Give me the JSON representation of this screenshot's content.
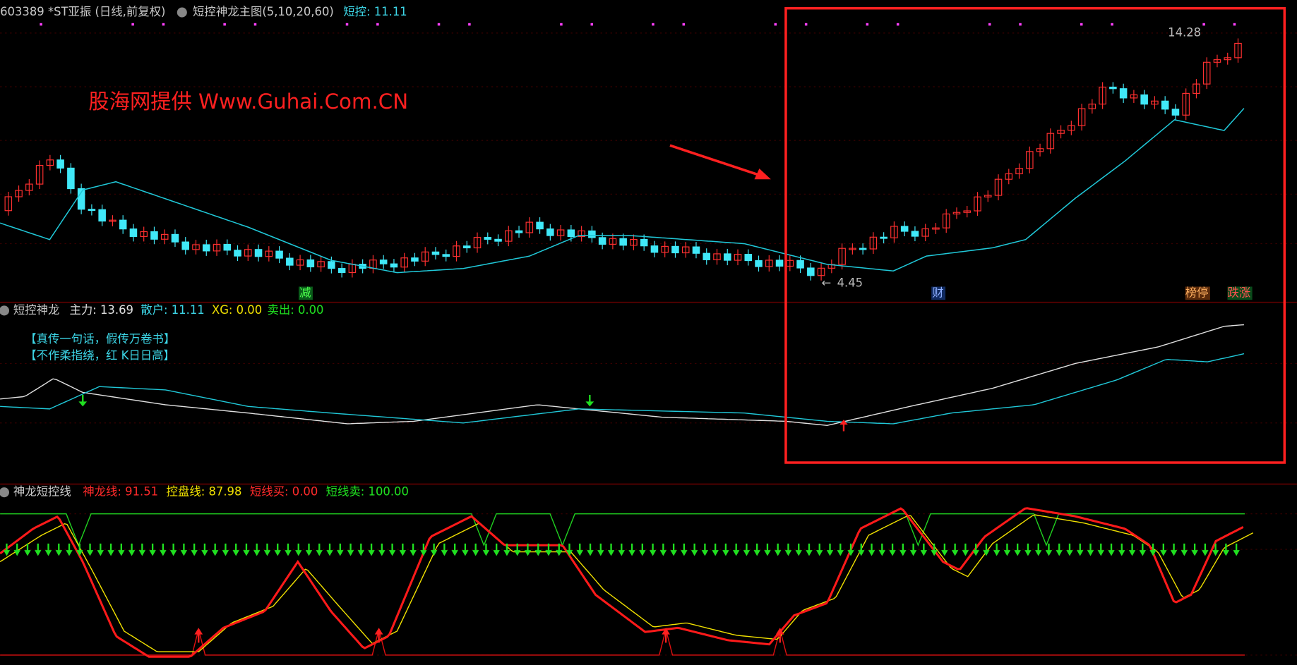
{
  "header": {
    "symbol": "603389 *ST亚振 (日线,前复权)",
    "indicator": "短控神龙主图(5,10,20,60)",
    "value": "短控: 11.11"
  },
  "watermark": "股海网提供 Www.Guhai.Com.CN",
  "price_labels": {
    "high": "14.28",
    "low": "4.45"
  },
  "signals": [
    "减",
    "财",
    "榜停",
    "跌涨"
  ],
  "panel2": {
    "title": "短控神龙",
    "items": [
      "主力: 13.69",
      "散户: 11.11",
      "XG: 0.00",
      "卖出: 0.00"
    ],
    "notes": [
      "【真传一句话，假传万卷书】",
      "【不作柔指绕，红 K日日高】"
    ]
  },
  "panel3": {
    "title": "神龙短控线",
    "items": [
      "神龙线: 91.51",
      "控盘线: 87.98",
      "短线买: 0.00",
      "短线卖: 100.00"
    ]
  }
}
